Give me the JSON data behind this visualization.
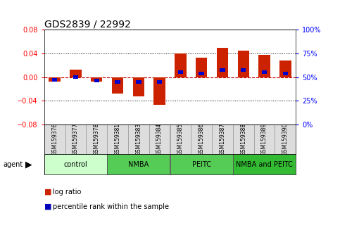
{
  "title": "GDS2839 / 22992",
  "samples": [
    "GSM159376",
    "GSM159377",
    "GSM159378",
    "GSM159381",
    "GSM159383",
    "GSM159384",
    "GSM159385",
    "GSM159386",
    "GSM159387",
    "GSM159388",
    "GSM159389",
    "GSM159390"
  ],
  "log_ratio": [
    -0.008,
    0.012,
    -0.008,
    -0.028,
    -0.033,
    -0.047,
    0.04,
    0.033,
    0.05,
    0.045,
    0.038,
    0.028
  ],
  "percentile_rank": [
    44,
    50,
    42,
    40,
    40,
    40,
    60,
    58,
    65,
    65,
    60,
    58
  ],
  "groups": [
    {
      "label": "control",
      "start": 0,
      "end": 3,
      "color": "#ccffcc"
    },
    {
      "label": "NMBA",
      "start": 3,
      "end": 6,
      "color": "#66ee66"
    },
    {
      "label": "PEITC",
      "start": 6,
      "end": 9,
      "color": "#66ee66"
    },
    {
      "label": "NMBA and PEITC",
      "start": 9,
      "end": 12,
      "color": "#33dd33"
    }
  ],
  "ylim": [
    -0.08,
    0.08
  ],
  "yticks_left": [
    -0.08,
    -0.04,
    0.0,
    0.04,
    0.08
  ],
  "yticks_right_vals": [
    -0.08,
    -0.04,
    0.0,
    0.04,
    0.08
  ],
  "yticks_right_labels": [
    "0%",
    "25%",
    "50%",
    "75%",
    "100%"
  ],
  "bar_color": "#cc2200",
  "pct_color": "#0000cc",
  "bar_width": 0.55,
  "pct_bar_width": 0.25,
  "pct_bar_height": 0.006,
  "background_color": "#ffffff",
  "plot_bg_color": "#ffffff",
  "grid_color": "#000000",
  "zero_line_color": "#cc0000",
  "label_cell_color": "#dddddd",
  "label_cell_edge": "#999999",
  "group_colors": [
    "#ccffcc",
    "#55cc55",
    "#55cc55",
    "#33bb33"
  ],
  "group_edge_color": "#555555",
  "legend_log_color": "#cc2200",
  "legend_pct_color": "#0000bb",
  "title_fontsize": 10,
  "tick_fontsize": 7,
  "label_fontsize": 5.5,
  "group_fontsize": 7,
  "legend_fontsize": 7
}
